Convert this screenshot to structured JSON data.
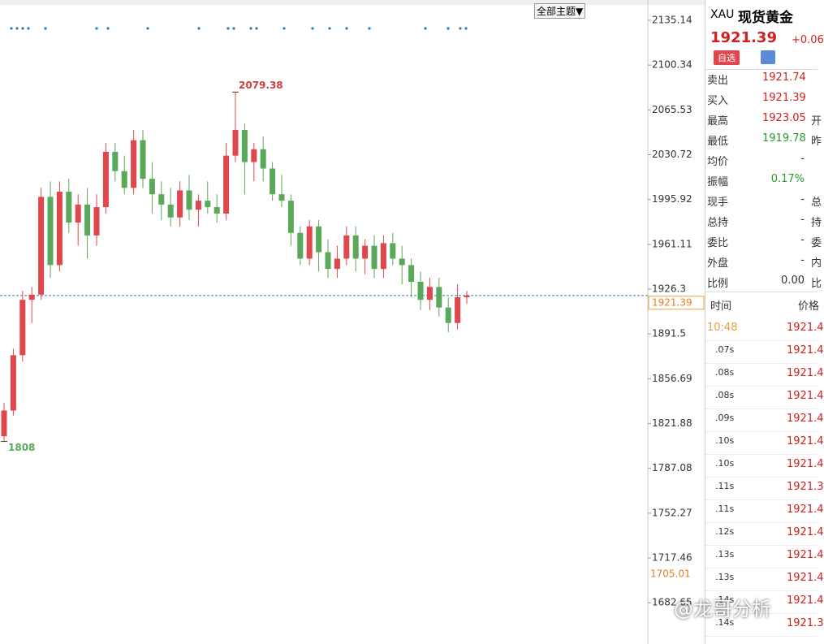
{
  "toolbar": {
    "theme_button": "全部主题▼"
  },
  "chart_data": {
    "type": "candlestick",
    "open": [
      1812,
      1832,
      1875,
      1918,
      1922,
      1998,
      1945,
      2002,
      1978,
      1992,
      1968,
      1990,
      2033,
      2018,
      2005,
      2042,
      2012,
      2000,
      1992,
      1982,
      2003,
      1988,
      1995,
      1990,
      1985,
      2030,
      2050,
      2025,
      2035,
      2020,
      2000,
      1995,
      1970,
      1950,
      1975,
      1955,
      1942,
      1950,
      1968,
      1950,
      1960,
      1942,
      1962,
      1950,
      1945,
      1932,
      1918,
      1928,
      1912,
      1900,
      1920
    ],
    "high": [
      1838,
      1880,
      1925,
      1928,
      2005,
      2010,
      2010,
      2012,
      2000,
      2005,
      2000,
      2040,
      2040,
      2030,
      2050,
      2050,
      2025,
      2010,
      2005,
      2010,
      2015,
      2000,
      2010,
      2000,
      2040,
      2079.38,
      2055,
      2040,
      2045,
      2025,
      2015,
      2000,
      1975,
      1980,
      1980,
      1965,
      1960,
      1975,
      1975,
      1965,
      1968,
      1968,
      1970,
      1960,
      1950,
      1940,
      1935,
      1935,
      1920,
      1930,
      1925
    ],
    "low": [
      1808,
      1828,
      1870,
      1900,
      1918,
      1935,
      1940,
      1970,
      1960,
      1950,
      1960,
      1985,
      2010,
      2000,
      2000,
      2005,
      1985,
      1980,
      1975,
      1975,
      1980,
      1975,
      1985,
      1978,
      1980,
      2025,
      2000,
      2010,
      2010,
      1995,
      1990,
      1960,
      1945,
      1945,
      1940,
      1935,
      1935,
      1945,
      1940,
      1938,
      1935,
      1935,
      1945,
      1930,
      1920,
      1910,
      1910,
      1905,
      1892.85,
      1895,
      1915
    ],
    "close": [
      1832,
      1875,
      1918,
      1922,
      1998,
      1945,
      2002,
      1978,
      1992,
      1968,
      1990,
      2033,
      2018,
      2005,
      2042,
      2012,
      2000,
      1992,
      1982,
      2003,
      1988,
      1995,
      1990,
      1985,
      2030,
      2050,
      2025,
      2035,
      2020,
      2000,
      1995,
      1970,
      1950,
      1975,
      1955,
      1942,
      1950,
      1968,
      1950,
      1960,
      1942,
      1962,
      1950,
      1945,
      1932,
      1918,
      1928,
      1912,
      1900,
      1920,
      1921.39
    ],
    "up_color": "#e0474c",
    "down_color": "#5aa85a",
    "ylim": [
      1650.63,
      2150.91
    ],
    "yticks": [
      2135.14,
      2100.34,
      2065.53,
      2030.72,
      1995.92,
      1961.11,
      1926.3,
      1891.5,
      1856.69,
      1821.88,
      1787.08,
      1752.27,
      1717.46,
      1682.65
    ],
    "last_price": 1921.39,
    "marker_price": 1705.01
  },
  "quote": {
    "symbol": "XAU",
    "name": "现货黄金",
    "price": "1921.39",
    "change": "+0.06",
    "watch_button": "自选",
    "rows": [
      [
        "卖出",
        "1921.74",
        ""
      ],
      [
        "买入",
        "1921.39",
        ""
      ],
      [
        "最高",
        "1923.05",
        "开"
      ],
      [
        "最低",
        "1919.78",
        "昨"
      ],
      [
        "均价",
        "-",
        ""
      ],
      [
        "振幅",
        "0.17%",
        ""
      ],
      [
        "现手",
        "-",
        "总"
      ],
      [
        "总持",
        "-",
        "持"
      ],
      [
        "委比",
        "-",
        "委"
      ],
      [
        "外盘",
        "-",
        "内"
      ],
      [
        "比例",
        "0.00",
        "比"
      ]
    ]
  },
  "trades": {
    "header": [
      "时间",
      "价格"
    ],
    "rows": [
      [
        "10:48",
        "1921.4"
      ],
      [
        ".07s",
        "1921.4"
      ],
      [
        ".08s",
        "1921.4"
      ],
      [
        ".08s",
        "1921.4"
      ],
      [
        ".09s",
        "1921.4"
      ],
      [
        ".10s",
        "1921.4"
      ],
      [
        ".10s",
        "1921.4"
      ],
      [
        ".11s",
        "1921.3"
      ],
      [
        ".11s",
        "1921.4"
      ],
      [
        ".12s",
        "1921.4"
      ],
      [
        ".13s",
        "1921.4"
      ],
      [
        ".13s",
        "1921.4"
      ],
      [
        ".14s",
        "1921.4"
      ],
      [
        ".14s",
        "1921.3"
      ]
    ]
  },
  "watermark": "@龙哥分析"
}
